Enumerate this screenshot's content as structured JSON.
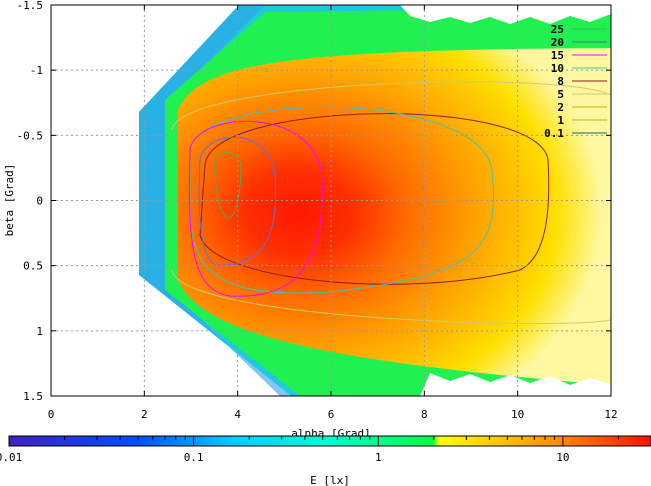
{
  "chart_data": {
    "type": "heatmap",
    "xlabel": "alpha [Grad]",
    "ylabel": "beta [Grad]",
    "xlim": [
      0,
      12
    ],
    "ylim": [
      -1.5,
      1.5
    ],
    "y_axis_inverted": true,
    "x_ticks": [
      0,
      2,
      4,
      6,
      8,
      10,
      12
    ],
    "y_ticks": [
      -1.5,
      -1,
      -0.5,
      0,
      0.5,
      1,
      1.5
    ],
    "grid": true,
    "legend_placement": "top-right",
    "contour_levels": [
      {
        "label": "25",
        "color": "#4caf50"
      },
      {
        "label": "20",
        "color": "#2e8b57"
      },
      {
        "label": "15",
        "color": "#ff00ff"
      },
      {
        "label": "10",
        "color": "#40c4b8"
      },
      {
        "label": "8",
        "color": "#8b2020"
      },
      {
        "label": "5",
        "color": "#cfc96a"
      },
      {
        "label": "2",
        "color": "#e0a000"
      },
      {
        "label": "1",
        "color": "#a0c020"
      },
      {
        "label": "0.1",
        "color": "#206060"
      }
    ],
    "colorbar": {
      "label": "E [lx]",
      "scale": "log",
      "range": [
        0.01,
        30
      ],
      "tick_labels": [
        "0.01",
        "0.1",
        "1",
        "10"
      ],
      "colors": [
        "#4020c0",
        "#0060ff",
        "#00ffff",
        "#00ff40",
        "#ffff00",
        "#ff9000",
        "#ff1a00"
      ]
    },
    "peak_location": {
      "alpha": 3.8,
      "beta": 0.1
    }
  }
}
